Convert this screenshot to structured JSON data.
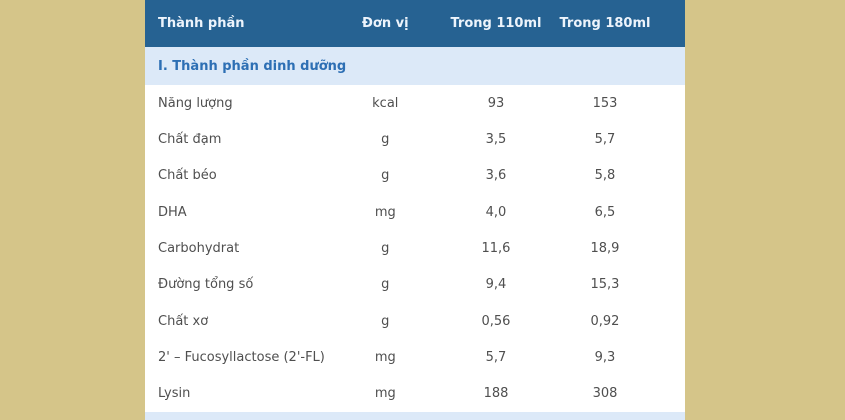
{
  "theme": {
    "page_background": "#d5c589",
    "header_background": "#266292",
    "header_text_color": "#edf4fc",
    "section_background": "#dce9f8",
    "section_text_color": "#2d6fb4",
    "row_text_color": "#4f4f4f"
  },
  "table": {
    "headers": {
      "component": "Thành phần",
      "unit": "Đơn vị",
      "per_110ml": "Trong 110ml",
      "per_180ml": "Trong 180ml"
    },
    "section_title": "I. Thành phần dinh dưỡng",
    "rows": [
      {
        "name": "Năng lượng",
        "unit": "kcal",
        "per_110ml": "93",
        "per_180ml": "153"
      },
      {
        "name": "Chất đạm",
        "unit": "g",
        "per_110ml": "3,5",
        "per_180ml": "5,7"
      },
      {
        "name": "Chất béo",
        "unit": "g",
        "per_110ml": "3,6",
        "per_180ml": "5,8"
      },
      {
        "name": "DHA",
        "unit": "mg",
        "per_110ml": "4,0",
        "per_180ml": "6,5"
      },
      {
        "name": "Carbohydrat",
        "unit": "g",
        "per_110ml": "11,6",
        "per_180ml": "18,9"
      },
      {
        "name": "Đường tổng số",
        "unit": "g",
        "per_110ml": "9,4",
        "per_180ml": "15,3"
      },
      {
        "name": "Chất xơ",
        "unit": "g",
        "per_110ml": "0,56",
        "per_180ml": "0,92"
      },
      {
        "name": "2' – Fucosyllactose (2'-FL)",
        "unit": "mg",
        "per_110ml": "5,7",
        "per_180ml": "9,3"
      },
      {
        "name": "Lysin",
        "unit": "mg",
        "per_110ml": "188",
        "per_180ml": "308"
      }
    ]
  }
}
